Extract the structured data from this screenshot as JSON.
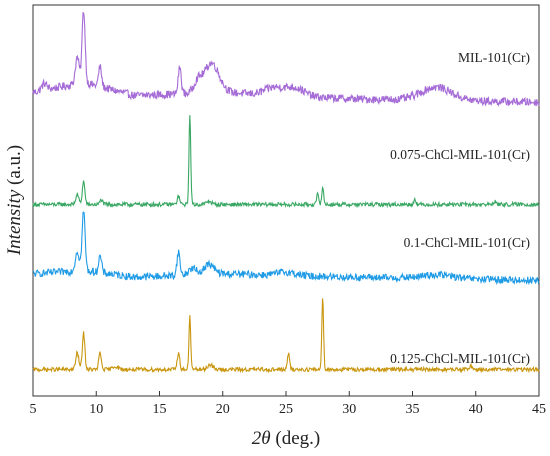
{
  "chart_data": {
    "type": "line",
    "title": "",
    "xlabel_italic": "2θ",
    "xlabel_rest": " (deg.)",
    "ylabel_italic": "Intensity",
    "ylabel_rest": " (a.u.)",
    "xlim": [
      5,
      45
    ],
    "xticks": [
      5,
      10,
      15,
      20,
      25,
      30,
      35,
      40,
      45
    ],
    "y_units": "arbitrary",
    "series": [
      {
        "name": "MIL-101(Cr)",
        "color": "#a56bd6",
        "baseline": 0.86,
        "noise": 0.012,
        "background": [
          [
            5,
            0.03
          ],
          [
            9,
            0.06
          ],
          [
            13,
            0.02
          ],
          [
            20,
            0.03
          ],
          [
            30,
            0.01
          ],
          [
            45,
            0.0
          ]
        ],
        "peaks": [
          [
            5.9,
            0.02,
            0.2
          ],
          [
            8.5,
            0.08,
            0.15
          ],
          [
            9.0,
            0.22,
            0.12
          ],
          [
            10.3,
            0.06,
            0.12
          ],
          [
            16.6,
            0.08,
            0.12
          ],
          [
            18.0,
            0.03,
            0.3
          ],
          [
            19.1,
            0.09,
            0.6
          ],
          [
            23.8,
            0.015,
            0.6
          ],
          [
            25.0,
            0.02,
            0.8
          ],
          [
            26.0,
            0.015,
            0.6
          ],
          [
            36.9,
            0.04,
            1.2
          ]
        ]
      },
      {
        "name": "0.075-ChCl-MIL-101(Cr)",
        "color": "#3aa864",
        "baseline": 0.55,
        "noise": 0.006,
        "background": [
          [
            5,
            0.0
          ],
          [
            20,
            0.0
          ],
          [
            45,
            0.0
          ]
        ],
        "peaks": [
          [
            8.5,
            0.03,
            0.12
          ],
          [
            9.0,
            0.07,
            0.1
          ],
          [
            10.4,
            0.015,
            0.1
          ],
          [
            16.5,
            0.025,
            0.1
          ],
          [
            17.4,
            0.27,
            0.07
          ],
          [
            18.9,
            0.01,
            0.2
          ],
          [
            27.5,
            0.03,
            0.08
          ],
          [
            27.9,
            0.05,
            0.08
          ],
          [
            35.2,
            0.018,
            0.08
          ],
          [
            41.5,
            0.01,
            0.1
          ]
        ]
      },
      {
        "name": "0.1-ChCl-MIL-101(Cr)",
        "color": "#1f9be6",
        "baseline": 0.32,
        "noise": 0.011,
        "background": [
          [
            5,
            0.02
          ],
          [
            9,
            0.03
          ],
          [
            13,
            0.01
          ],
          [
            20,
            0.02
          ],
          [
            30,
            0.01
          ],
          [
            45,
            0.0
          ]
        ],
        "peaks": [
          [
            8.5,
            0.06,
            0.15
          ],
          [
            9.0,
            0.18,
            0.12
          ],
          [
            10.3,
            0.05,
            0.12
          ],
          [
            16.5,
            0.07,
            0.12
          ],
          [
            17.6,
            0.02,
            0.3
          ],
          [
            18.9,
            0.03,
            0.4
          ],
          [
            25.0,
            0.01,
            0.7
          ],
          [
            37.0,
            0.012,
            1.2
          ]
        ]
      },
      {
        "name": "0.125-ChCl-MIL-101(Cr)",
        "color": "#c9960f",
        "baseline": 0.05,
        "noise": 0.006,
        "background": [
          [
            5,
            0.0
          ],
          [
            20,
            0.0
          ],
          [
            45,
            0.0
          ]
        ],
        "peaks": [
          [
            8.5,
            0.05,
            0.12
          ],
          [
            9.0,
            0.11,
            0.1
          ],
          [
            10.3,
            0.05,
            0.1
          ],
          [
            11.5,
            0.01,
            0.2
          ],
          [
            16.5,
            0.05,
            0.1
          ],
          [
            17.4,
            0.16,
            0.07
          ],
          [
            19.0,
            0.015,
            0.2
          ],
          [
            25.2,
            0.05,
            0.08
          ],
          [
            27.9,
            0.22,
            0.07
          ],
          [
            39.6,
            0.012,
            0.1
          ]
        ]
      }
    ]
  }
}
